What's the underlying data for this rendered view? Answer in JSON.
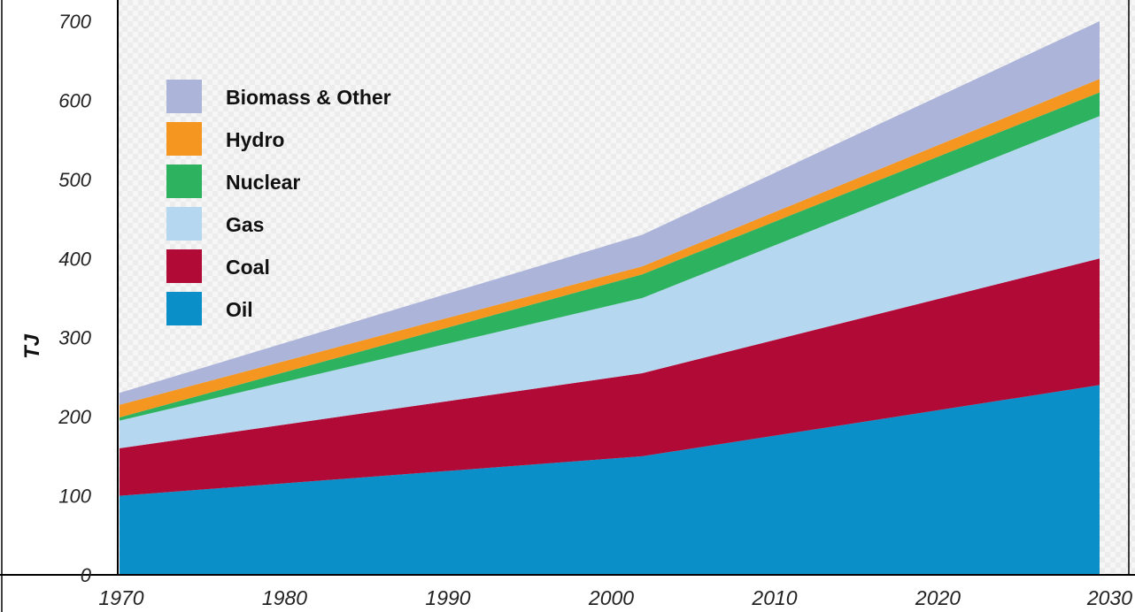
{
  "chart_data": {
    "type": "area",
    "stacked": true,
    "title": "",
    "xlabel": "",
    "ylabel": "TJ",
    "x": [
      1970,
      2002,
      2030
    ],
    "xticks": [
      "1970",
      "1980",
      "1990",
      "2000",
      "2010",
      "2020",
      "2030"
    ],
    "yticks": [
      "0",
      "100",
      "200",
      "300",
      "400",
      "500",
      "600",
      "700"
    ],
    "xlim": [
      1970,
      2030
    ],
    "ylim": [
      0,
      700
    ],
    "grid": false,
    "legend_position": "top-left",
    "series": [
      {
        "name": "Oil",
        "color": "#0a8fc9",
        "values": [
          100,
          150,
          240
        ]
      },
      {
        "name": "Coal",
        "color": "#b20a36",
        "values": [
          60,
          105,
          160
        ]
      },
      {
        "name": "Gas",
        "color": "#b6d7f0",
        "values": [
          35,
          95,
          180
        ]
      },
      {
        "name": "Nuclear",
        "color": "#2db35f",
        "values": [
          4,
          30,
          30
        ]
      },
      {
        "name": "Hydro",
        "color": "#f4961f",
        "values": [
          16,
          10,
          17
        ]
      },
      {
        "name": "Biomass & Other",
        "color": "#adb4da",
        "values": [
          15,
          40,
          73
        ]
      }
    ],
    "legend_order": [
      "Biomass & Other",
      "Hydro",
      "Nuclear",
      "Gas",
      "Coal",
      "Oil"
    ]
  }
}
